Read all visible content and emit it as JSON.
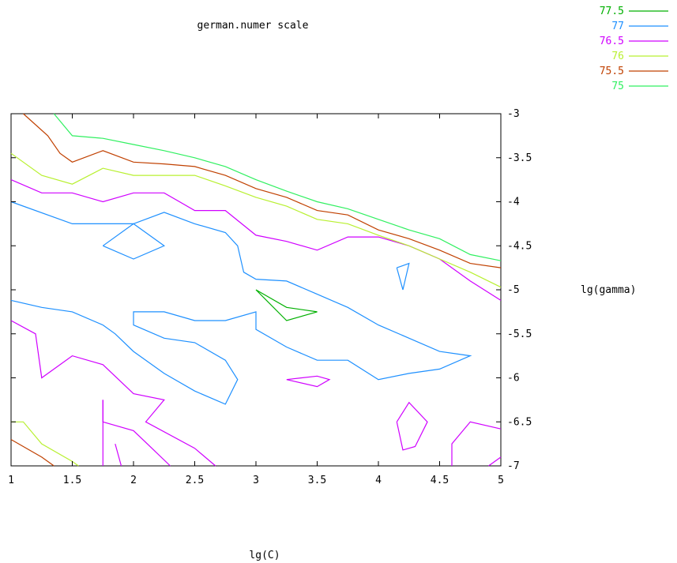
{
  "chart_data": {
    "type": "contour",
    "title": "german.numer scale",
    "xlabel": "lg(C)",
    "ylabel": "lg(gamma)",
    "xlim": [
      1,
      5
    ],
    "ylim": [
      -7,
      -3
    ],
    "x_ticks": [
      1,
      1.5,
      2,
      2.5,
      3,
      3.5,
      4,
      4.5,
      5
    ],
    "x_tick_labels": [
      "1",
      "1.5",
      "2",
      "2.5",
      "3",
      "3.5",
      "4",
      "4.5",
      "5"
    ],
    "y_ticks": [
      -3,
      -3.5,
      -4,
      -4.5,
      -5,
      -5.5,
      -6,
      -6.5,
      -7
    ],
    "y_tick_labels": [
      "-3",
      "-3.5",
      "-4",
      "-4.5",
      "-5",
      "-5.5",
      "-6",
      "-6.5",
      "-7"
    ],
    "grid": false,
    "legend_position": "top-right",
    "series": [
      {
        "name": "77.5",
        "color": "#00b000",
        "paths": [
          [
            [
              3.0,
              -5.0
            ],
            [
              3.25,
              -5.2
            ],
            [
              3.5,
              -5.25
            ],
            [
              3.25,
              -5.35
            ],
            [
              3.0,
              -5.0
            ]
          ]
        ]
      },
      {
        "name": "77",
        "color": "#1e90ff",
        "paths": [
          [
            [
              1.0,
              -4.0
            ],
            [
              1.5,
              -4.25
            ],
            [
              1.75,
              -4.25
            ],
            [
              2.0,
              -4.25
            ],
            [
              2.25,
              -4.12
            ],
            [
              2.5,
              -4.25
            ],
            [
              2.75,
              -4.35
            ],
            [
              2.85,
              -4.5
            ],
            [
              2.9,
              -4.8
            ],
            [
              3.0,
              -4.88
            ],
            [
              3.25,
              -4.9
            ],
            [
              3.5,
              -5.05
            ],
            [
              3.75,
              -5.2
            ],
            [
              4.0,
              -5.4
            ],
            [
              4.25,
              -5.55
            ],
            [
              4.5,
              -5.7
            ],
            [
              4.75,
              -5.75
            ],
            [
              4.5,
              -5.9
            ],
            [
              4.25,
              -5.95
            ],
            [
              4.0,
              -6.02
            ],
            [
              3.75,
              -5.8
            ],
            [
              3.5,
              -5.8
            ],
            [
              3.25,
              -5.65
            ],
            [
              3.0,
              -5.45
            ],
            [
              3.0,
              -5.25
            ],
            [
              2.75,
              -5.35
            ],
            [
              2.5,
              -5.35
            ],
            [
              2.25,
              -5.25
            ],
            [
              2.0,
              -5.25
            ],
            [
              2.0,
              -5.4
            ],
            [
              2.25,
              -5.55
            ],
            [
              2.5,
              -5.6
            ],
            [
              2.75,
              -5.8
            ],
            [
              2.85,
              -6.02
            ],
            [
              2.75,
              -6.3
            ],
            [
              2.5,
              -6.15
            ],
            [
              2.25,
              -5.95
            ],
            [
              2.0,
              -5.7
            ],
            [
              1.85,
              -5.5
            ],
            [
              1.75,
              -5.4
            ],
            [
              1.5,
              -5.25
            ],
            [
              1.25,
              -5.2
            ],
            [
              1.0,
              -5.12
            ]
          ],
          [
            [
              1.75,
              -4.5
            ],
            [
              2.0,
              -4.25
            ],
            [
              2.25,
              -4.5
            ],
            [
              2.0,
              -4.65
            ],
            [
              1.75,
              -4.5
            ]
          ],
          [
            [
              4.15,
              -4.75
            ],
            [
              4.25,
              -4.7
            ],
            [
              4.2,
              -5.0
            ],
            [
              4.15,
              -4.75
            ]
          ]
        ]
      },
      {
        "name": "76.5",
        "color": "#d000ff",
        "paths": [
          [
            [
              1.0,
              -3.75
            ],
            [
              1.25,
              -3.9
            ],
            [
              1.5,
              -3.9
            ],
            [
              1.75,
              -4.0
            ],
            [
              2.0,
              -3.9
            ],
            [
              2.25,
              -3.9
            ],
            [
              2.5,
              -4.1
            ],
            [
              2.75,
              -4.1
            ],
            [
              3.0,
              -4.38
            ],
            [
              3.25,
              -4.45
            ],
            [
              3.5,
              -4.55
            ],
            [
              3.75,
              -4.4
            ],
            [
              4.0,
              -4.4
            ],
            [
              4.25,
              -4.5
            ],
            [
              4.5,
              -4.65
            ],
            [
              4.75,
              -4.9
            ],
            [
              5.0,
              -5.12
            ]
          ],
          [
            [
              1.0,
              -5.35
            ],
            [
              1.2,
              -5.5
            ],
            [
              1.25,
              -6.0
            ],
            [
              1.5,
              -5.75
            ],
            [
              1.75,
              -5.85
            ],
            [
              2.0,
              -6.18
            ],
            [
              2.25,
              -6.25
            ],
            [
              2.1,
              -6.5
            ],
            [
              2.5,
              -6.8
            ],
            [
              2.67,
              -7.0
            ]
          ],
          [
            [
              1.75,
              -6.25
            ],
            [
              1.75,
              -6.5
            ],
            [
              2.0,
              -6.6
            ],
            [
              2.15,
              -6.8
            ],
            [
              2.3,
              -7.0
            ]
          ],
          [
            [
              1.75,
              -6.25
            ],
            [
              1.75,
              -7.0
            ]
          ],
          [
            [
              1.85,
              -6.75
            ],
            [
              1.9,
              -7.0
            ]
          ],
          [
            [
              3.25,
              -6.02
            ],
            [
              3.5,
              -5.98
            ],
            [
              3.6,
              -6.02
            ],
            [
              3.5,
              -6.1
            ],
            [
              3.25,
              -6.02
            ]
          ],
          [
            [
              4.15,
              -6.5
            ],
            [
              4.25,
              -6.28
            ],
            [
              4.4,
              -6.5
            ],
            [
              4.3,
              -6.78
            ],
            [
              4.2,
              -6.82
            ],
            [
              4.15,
              -6.5
            ]
          ],
          [
            [
              4.6,
              -7.0
            ],
            [
              4.6,
              -6.75
            ],
            [
              4.75,
              -6.5
            ],
            [
              5.0,
              -6.58
            ]
          ],
          [
            [
              5.0,
              -6.9
            ],
            [
              4.9,
              -7.0
            ]
          ]
        ]
      },
      {
        "name": "76",
        "color": "#b8f030",
        "paths": [
          [
            [
              1.0,
              -3.45
            ],
            [
              1.25,
              -3.7
            ],
            [
              1.5,
              -3.8
            ],
            [
              1.75,
              -3.62
            ],
            [
              2.0,
              -3.7
            ],
            [
              2.25,
              -3.7
            ],
            [
              2.5,
              -3.7
            ],
            [
              2.75,
              -3.82
            ],
            [
              3.0,
              -3.95
            ],
            [
              3.25,
              -4.05
            ],
            [
              3.5,
              -4.2
            ],
            [
              3.75,
              -4.25
            ],
            [
              4.0,
              -4.38
            ],
            [
              4.25,
              -4.5
            ],
            [
              4.5,
              -4.65
            ],
            [
              4.75,
              -4.8
            ],
            [
              5.0,
              -4.97
            ]
          ],
          [
            [
              1.0,
              -6.5
            ],
            [
              1.1,
              -6.5
            ],
            [
              1.25,
              -6.75
            ],
            [
              1.5,
              -6.95
            ],
            [
              1.55,
              -7.0
            ]
          ]
        ]
      },
      {
        "name": "75.5",
        "color": "#c04000",
        "paths": [
          [
            [
              1.1,
              -3.0
            ],
            [
              1.3,
              -3.25
            ],
            [
              1.4,
              -3.45
            ],
            [
              1.5,
              -3.55
            ],
            [
              1.75,
              -3.42
            ],
            [
              2.0,
              -3.55
            ],
            [
              2.25,
              -3.57
            ],
            [
              2.5,
              -3.6
            ],
            [
              2.75,
              -3.7
            ],
            [
              3.0,
              -3.85
            ],
            [
              3.25,
              -3.95
            ],
            [
              3.5,
              -4.1
            ],
            [
              3.75,
              -4.15
            ],
            [
              4.0,
              -4.32
            ],
            [
              4.25,
              -4.42
            ],
            [
              4.5,
              -4.55
            ],
            [
              4.75,
              -4.7
            ],
            [
              5.0,
              -4.75
            ]
          ],
          [
            [
              1.0,
              -6.7
            ],
            [
              1.25,
              -6.9
            ],
            [
              1.35,
              -7.0
            ]
          ]
        ]
      },
      {
        "name": "75",
        "color": "#30f060",
        "paths": [
          [
            [
              1.35,
              -3.0
            ],
            [
              1.5,
              -3.25
            ],
            [
              1.75,
              -3.28
            ],
            [
              2.0,
              -3.35
            ],
            [
              2.25,
              -3.42
            ],
            [
              2.5,
              -3.5
            ],
            [
              2.75,
              -3.6
            ],
            [
              3.0,
              -3.75
            ],
            [
              3.25,
              -3.88
            ],
            [
              3.5,
              -4.0
            ],
            [
              3.75,
              -4.08
            ],
            [
              4.0,
              -4.2
            ],
            [
              4.25,
              -4.32
            ],
            [
              4.5,
              -4.42
            ],
            [
              4.75,
              -4.6
            ],
            [
              5.0,
              -4.67
            ]
          ]
        ]
      }
    ]
  }
}
